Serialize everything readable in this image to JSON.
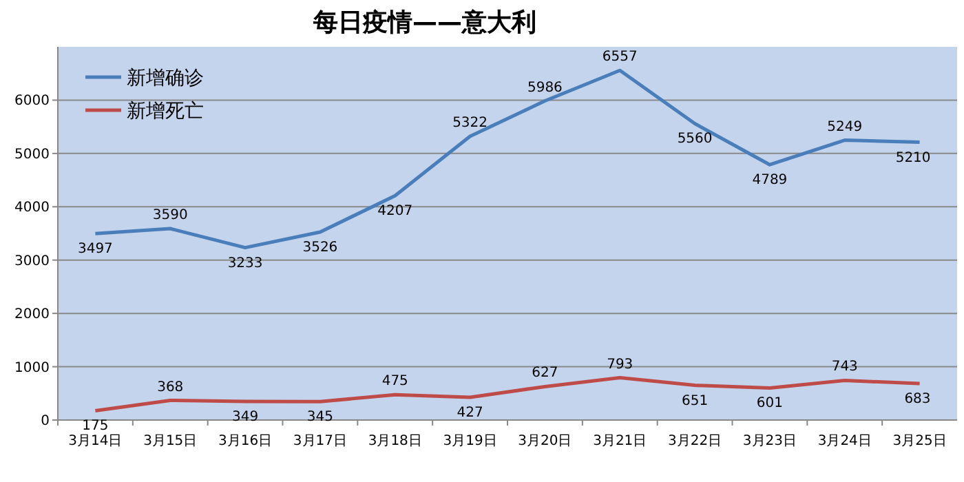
{
  "chart_data": {
    "type": "line",
    "title": "每日疫情——意大利",
    "categories": [
      "3月14日",
      "3月15日",
      "3月16日",
      "3月17日",
      "3月18日",
      "3月19日",
      "3月20日",
      "3月21日",
      "3月22日",
      "3月23日",
      "3月24日",
      "3月25日"
    ],
    "series": [
      {
        "name": "新增确诊",
        "color": "#4a7ebb",
        "values": [
          3497,
          3590,
          3233,
          3526,
          4207,
          5322,
          5986,
          6557,
          5560,
          4789,
          5249,
          5210
        ]
      },
      {
        "name": "新增死亡",
        "color": "#be4b48",
        "values": [
          175,
          368,
          349,
          345,
          475,
          427,
          627,
          793,
          651,
          601,
          743,
          683
        ]
      }
    ],
    "ylim": [
      0,
      7000
    ],
    "yticks": [
      0,
      1000,
      2000,
      3000,
      4000,
      5000,
      6000
    ],
    "grid": "y",
    "legend": "top left",
    "data_labels": true,
    "marker": "none",
    "line_style": "solid"
  }
}
